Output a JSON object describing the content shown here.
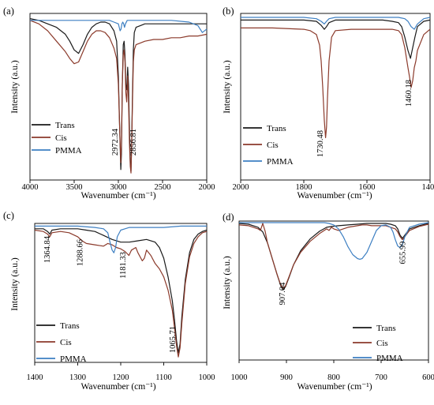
{
  "chart_data": [
    {
      "panel": "(a)",
      "type": "line",
      "xlabel": "Wavenumber (cm⁻¹)",
      "ylabel": "Intensity (a.u.)",
      "xlim": [
        4000,
        2000
      ],
      "xticks": [
        4000,
        3500,
        3000,
        2500,
        2000
      ],
      "legend_position": "lower-left",
      "grid": false,
      "annotations": [
        {
          "text": "2972.34",
          "x": 2972.34
        },
        {
          "text": "2856.81",
          "x": 2856.81
        }
      ],
      "series": [
        {
          "name": "Trans",
          "color": "#1a1a1a",
          "x": [
            4000,
            3900,
            3800,
            3700,
            3600,
            3550,
            3500,
            3450,
            3400,
            3350,
            3300,
            3250,
            3200,
            3150,
            3100,
            3050,
            3020,
            3000,
            2990,
            2980,
            2972,
            2965,
            2955,
            2945,
            2935,
            2925,
            2915,
            2905,
            2895,
            2885,
            2875,
            2865,
            2857,
            2850,
            2840,
            2830,
            2820,
            2800,
            2750,
            2700,
            2600,
            2500,
            2400,
            2300,
            2200,
            2100,
            2000
          ],
          "y": [
            0.93,
            0.92,
            0.9,
            0.88,
            0.84,
            0.8,
            0.75,
            0.73,
            0.78,
            0.84,
            0.88,
            0.9,
            0.91,
            0.91,
            0.9,
            0.86,
            0.8,
            0.6,
            0.4,
            0.2,
            0.06,
            0.15,
            0.55,
            0.78,
            0.8,
            0.72,
            0.55,
            0.52,
            0.65,
            0.55,
            0.3,
            0.1,
            0.05,
            0.2,
            0.5,
            0.75,
            0.85,
            0.88,
            0.89,
            0.9,
            0.9,
            0.9,
            0.9,
            0.9,
            0.9,
            0.9,
            0.9
          ]
        },
        {
          "name": "Cis",
          "color": "#8b3a2b",
          "x": [
            4000,
            3900,
            3800,
            3700,
            3600,
            3550,
            3500,
            3450,
            3400,
            3350,
            3300,
            3250,
            3200,
            3150,
            3100,
            3050,
            3020,
            3000,
            2990,
            2980,
            2972,
            2965,
            2955,
            2945,
            2935,
            2925,
            2915,
            2905,
            2895,
            2885,
            2875,
            2865,
            2857,
            2850,
            2840,
            2830,
            2820,
            2800,
            2750,
            2700,
            2600,
            2500,
            2400,
            2300,
            2200,
            2100,
            2000
          ],
          "y": [
            0.92,
            0.9,
            0.86,
            0.8,
            0.74,
            0.7,
            0.67,
            0.68,
            0.74,
            0.8,
            0.84,
            0.86,
            0.86,
            0.85,
            0.82,
            0.76,
            0.7,
            0.55,
            0.38,
            0.22,
            0.1,
            0.2,
            0.55,
            0.72,
            0.75,
            0.68,
            0.5,
            0.45,
            0.6,
            0.45,
            0.22,
            0.08,
            0.04,
            0.18,
            0.45,
            0.68,
            0.75,
            0.78,
            0.79,
            0.8,
            0.81,
            0.81,
            0.82,
            0.82,
            0.83,
            0.83,
            0.84
          ]
        },
        {
          "name": "PMMA",
          "color": "#3d7fc2",
          "x": [
            4000,
            3800,
            3600,
            3400,
            3200,
            3100,
            3050,
            3000,
            2990,
            2980,
            2970,
            2960,
            2950,
            2940,
            2930,
            2920,
            2900,
            2850,
            2800,
            2600,
            2400,
            2200,
            2100,
            2050,
            2000
          ],
          "y": [
            0.92,
            0.92,
            0.92,
            0.92,
            0.92,
            0.92,
            0.91,
            0.9,
            0.88,
            0.86,
            0.87,
            0.9,
            0.91,
            0.9,
            0.88,
            0.9,
            0.92,
            0.92,
            0.92,
            0.92,
            0.92,
            0.91,
            0.89,
            0.85,
            0.87
          ]
        }
      ]
    },
    {
      "panel": "(b)",
      "type": "line",
      "xlabel": "Wavenumber (cm⁻¹)",
      "ylabel": "Intensity (a.u.)",
      "xlim": [
        2000,
        1400
      ],
      "xticks": [
        2000,
        1800,
        1600,
        1400
      ],
      "legend_position": "lower-left",
      "grid": false,
      "annotations": [
        {
          "text": "1730.48",
          "x": 1730.48
        },
        {
          "text": "1460.18",
          "x": 1460.18
        }
      ],
      "series": [
        {
          "name": "Trans",
          "color": "#1a1a1a",
          "x": [
            2000,
            1900,
            1800,
            1760,
            1745,
            1735,
            1728,
            1720,
            1700,
            1650,
            1600,
            1550,
            1520,
            1500,
            1490,
            1480,
            1470,
            1462,
            1455,
            1448,
            1440,
            1420,
            1400
          ],
          "y": [
            0.91,
            0.91,
            0.91,
            0.9,
            0.87,
            0.84,
            0.86,
            0.89,
            0.91,
            0.91,
            0.91,
            0.91,
            0.9,
            0.89,
            0.86,
            0.78,
            0.68,
            0.62,
            0.7,
            0.78,
            0.86,
            0.9,
            0.91
          ]
        },
        {
          "name": "Cis",
          "color": "#8b3a2b",
          "x": [
            2000,
            1900,
            1800,
            1780,
            1760,
            1750,
            1745,
            1740,
            1735,
            1731,
            1728,
            1725,
            1720,
            1712,
            1700,
            1650,
            1600,
            1550,
            1520,
            1500,
            1490,
            1480,
            1470,
            1465,
            1460,
            1455,
            1450,
            1445,
            1440,
            1420,
            1400
          ],
          "y": [
            0.85,
            0.85,
            0.84,
            0.83,
            0.8,
            0.72,
            0.6,
            0.4,
            0.15,
            0.02,
            0.1,
            0.32,
            0.6,
            0.78,
            0.83,
            0.84,
            0.84,
            0.84,
            0.84,
            0.83,
            0.8,
            0.7,
            0.55,
            0.48,
            0.4,
            0.45,
            0.55,
            0.6,
            0.68,
            0.8,
            0.84
          ]
        },
        {
          "name": "PMMA",
          "color": "#3d7fc2",
          "x": [
            2000,
            1900,
            1800,
            1760,
            1745,
            1735,
            1728,
            1720,
            1700,
            1650,
            1600,
            1550,
            1500,
            1480,
            1470,
            1460,
            1450,
            1440,
            1420,
            1400
          ],
          "y": [
            0.93,
            0.93,
            0.93,
            0.92,
            0.9,
            0.88,
            0.9,
            0.92,
            0.93,
            0.93,
            0.93,
            0.93,
            0.93,
            0.92,
            0.9,
            0.86,
            0.84,
            0.88,
            0.92,
            0.93
          ]
        }
      ]
    },
    {
      "panel": "(c)",
      "type": "line",
      "xlabel": "Wavenumber (cm⁻¹)",
      "ylabel": "Intensity (a.u.)",
      "xlim": [
        1400,
        1000
      ],
      "xticks": [
        1400,
        1300,
        1200,
        1100,
        1000
      ],
      "legend_position": "lower-left",
      "grid": false,
      "annotations": [
        {
          "text": "1364.84",
          "x": 1364.84
        },
        {
          "text": "1288.66",
          "x": 1288.66
        },
        {
          "text": "1181.33",
          "x": 1181.33
        },
        {
          "text": "1065.71",
          "x": 1065.71
        }
      ],
      "series": [
        {
          "name": "Trans",
          "color": "#1a1a1a",
          "x": [
            1400,
            1380,
            1370,
            1365,
            1360,
            1340,
            1300,
            1280,
            1260,
            1240,
            1220,
            1200,
            1180,
            1160,
            1140,
            1120,
            1110,
            1100,
            1090,
            1080,
            1075,
            1070,
            1066,
            1062,
            1058,
            1050,
            1040,
            1030,
            1020,
            1010,
            1000
          ],
          "y": [
            0.96,
            0.96,
            0.94,
            0.92,
            0.95,
            0.96,
            0.96,
            0.95,
            0.94,
            0.91,
            0.88,
            0.86,
            0.86,
            0.87,
            0.88,
            0.86,
            0.82,
            0.74,
            0.6,
            0.42,
            0.28,
            0.12,
            0.03,
            0.1,
            0.3,
            0.58,
            0.78,
            0.88,
            0.92,
            0.94,
            0.95
          ]
        },
        {
          "name": "Cis",
          "color": "#8b3a2b",
          "x": [
            1400,
            1380,
            1370,
            1365,
            1360,
            1340,
            1320,
            1300,
            1290,
            1280,
            1260,
            1240,
            1230,
            1220,
            1210,
            1200,
            1190,
            1181,
            1175,
            1165,
            1160,
            1150,
            1145,
            1140,
            1130,
            1120,
            1110,
            1100,
            1090,
            1080,
            1075,
            1070,
            1066,
            1062,
            1058,
            1050,
            1040,
            1030,
            1020,
            1010,
            1000
          ],
          "y": [
            0.95,
            0.94,
            0.92,
            0.9,
            0.93,
            0.94,
            0.93,
            0.9,
            0.87,
            0.85,
            0.84,
            0.83,
            0.85,
            0.84,
            0.82,
            0.81,
            0.79,
            0.76,
            0.8,
            0.82,
            0.78,
            0.72,
            0.74,
            0.8,
            0.76,
            0.7,
            0.66,
            0.6,
            0.5,
            0.35,
            0.22,
            0.08,
            0.0,
            0.07,
            0.25,
            0.55,
            0.75,
            0.85,
            0.9,
            0.93,
            0.94
          ]
        },
        {
          "name": "PMMA",
          "color": "#3d7fc2",
          "x": [
            1400,
            1380,
            1300,
            1260,
            1240,
            1230,
            1225,
            1220,
            1216,
            1212,
            1208,
            1200,
            1190,
            1180,
            1160,
            1140,
            1100,
            1060,
            1000
          ],
          "y": [
            0.98,
            0.98,
            0.98,
            0.97,
            0.96,
            0.93,
            0.86,
            0.8,
            0.78,
            0.82,
            0.9,
            0.95,
            0.96,
            0.97,
            0.97,
            0.97,
            0.97,
            0.98,
            0.98
          ]
        }
      ]
    },
    {
      "panel": "(d)",
      "type": "line",
      "xlabel": "Wavenumber (cm⁻¹)",
      "ylabel": "Intensity (a.u.)",
      "xlim": [
        1000,
        600
      ],
      "xticks": [
        1000,
        900,
        800,
        700,
        600
      ],
      "legend_position": "lower-right",
      "grid": false,
      "annotations": [
        {
          "text": "907.04",
          "x": 907.04
        },
        {
          "text": "655.99",
          "x": 655.99
        }
      ],
      "series": [
        {
          "name": "Trans",
          "color": "#1a1a1a",
          "x": [
            1000,
            980,
            960,
            950,
            940,
            930,
            920,
            912,
            907,
            902,
            895,
            885,
            870,
            850,
            830,
            815,
            805,
            790,
            770,
            750,
            730,
            710,
            690,
            680,
            670,
            665,
            660,
            655,
            650,
            640,
            620,
            600
          ],
          "y": [
            0.95,
            0.94,
            0.9,
            0.84,
            0.7,
            0.5,
            0.3,
            0.15,
            0.1,
            0.14,
            0.25,
            0.42,
            0.6,
            0.75,
            0.85,
            0.9,
            0.91,
            0.92,
            0.93,
            0.94,
            0.95,
            0.95,
            0.95,
            0.94,
            0.92,
            0.88,
            0.8,
            0.76,
            0.8,
            0.88,
            0.92,
            0.95
          ]
        },
        {
          "name": "Cis",
          "color": "#8b3a2b",
          "x": [
            1000,
            980,
            960,
            955,
            950,
            945,
            940,
            930,
            920,
            912,
            907,
            902,
            895,
            885,
            870,
            850,
            830,
            815,
            810,
            805,
            800,
            790,
            780,
            770,
            760,
            750,
            740,
            730,
            720,
            710,
            700,
            690,
            680,
            670,
            665,
            660,
            655,
            650,
            640,
            620,
            600
          ],
          "y": [
            0.93,
            0.92,
            0.88,
            0.86,
            0.95,
            0.85,
            0.7,
            0.5,
            0.3,
            0.16,
            0.12,
            0.15,
            0.26,
            0.42,
            0.58,
            0.72,
            0.82,
            0.88,
            0.86,
            0.9,
            0.88,
            0.86,
            0.88,
            0.9,
            0.91,
            0.92,
            0.93,
            0.93,
            0.92,
            0.92,
            0.92,
            0.92,
            0.9,
            0.88,
            0.84,
            0.78,
            0.74,
            0.78,
            0.86,
            0.91,
            0.94
          ]
        },
        {
          "name": "PMMA",
          "color": "#3d7fc2",
          "x": [
            1000,
            950,
            900,
            860,
            840,
            820,
            810,
            800,
            790,
            780,
            770,
            760,
            750,
            745,
            740,
            730,
            720,
            710,
            700,
            690,
            680,
            675,
            670,
            665,
            660,
            655,
            650,
            640,
            620,
            600
          ],
          "y": [
            0.96,
            0.96,
            0.96,
            0.96,
            0.96,
            0.96,
            0.95,
            0.93,
            0.88,
            0.78,
            0.65,
            0.55,
            0.5,
            0.49,
            0.5,
            0.58,
            0.72,
            0.86,
            0.92,
            0.93,
            0.9,
            0.84,
            0.74,
            0.66,
            0.64,
            0.68,
            0.78,
            0.9,
            0.94,
            0.96
          ]
        }
      ]
    }
  ]
}
